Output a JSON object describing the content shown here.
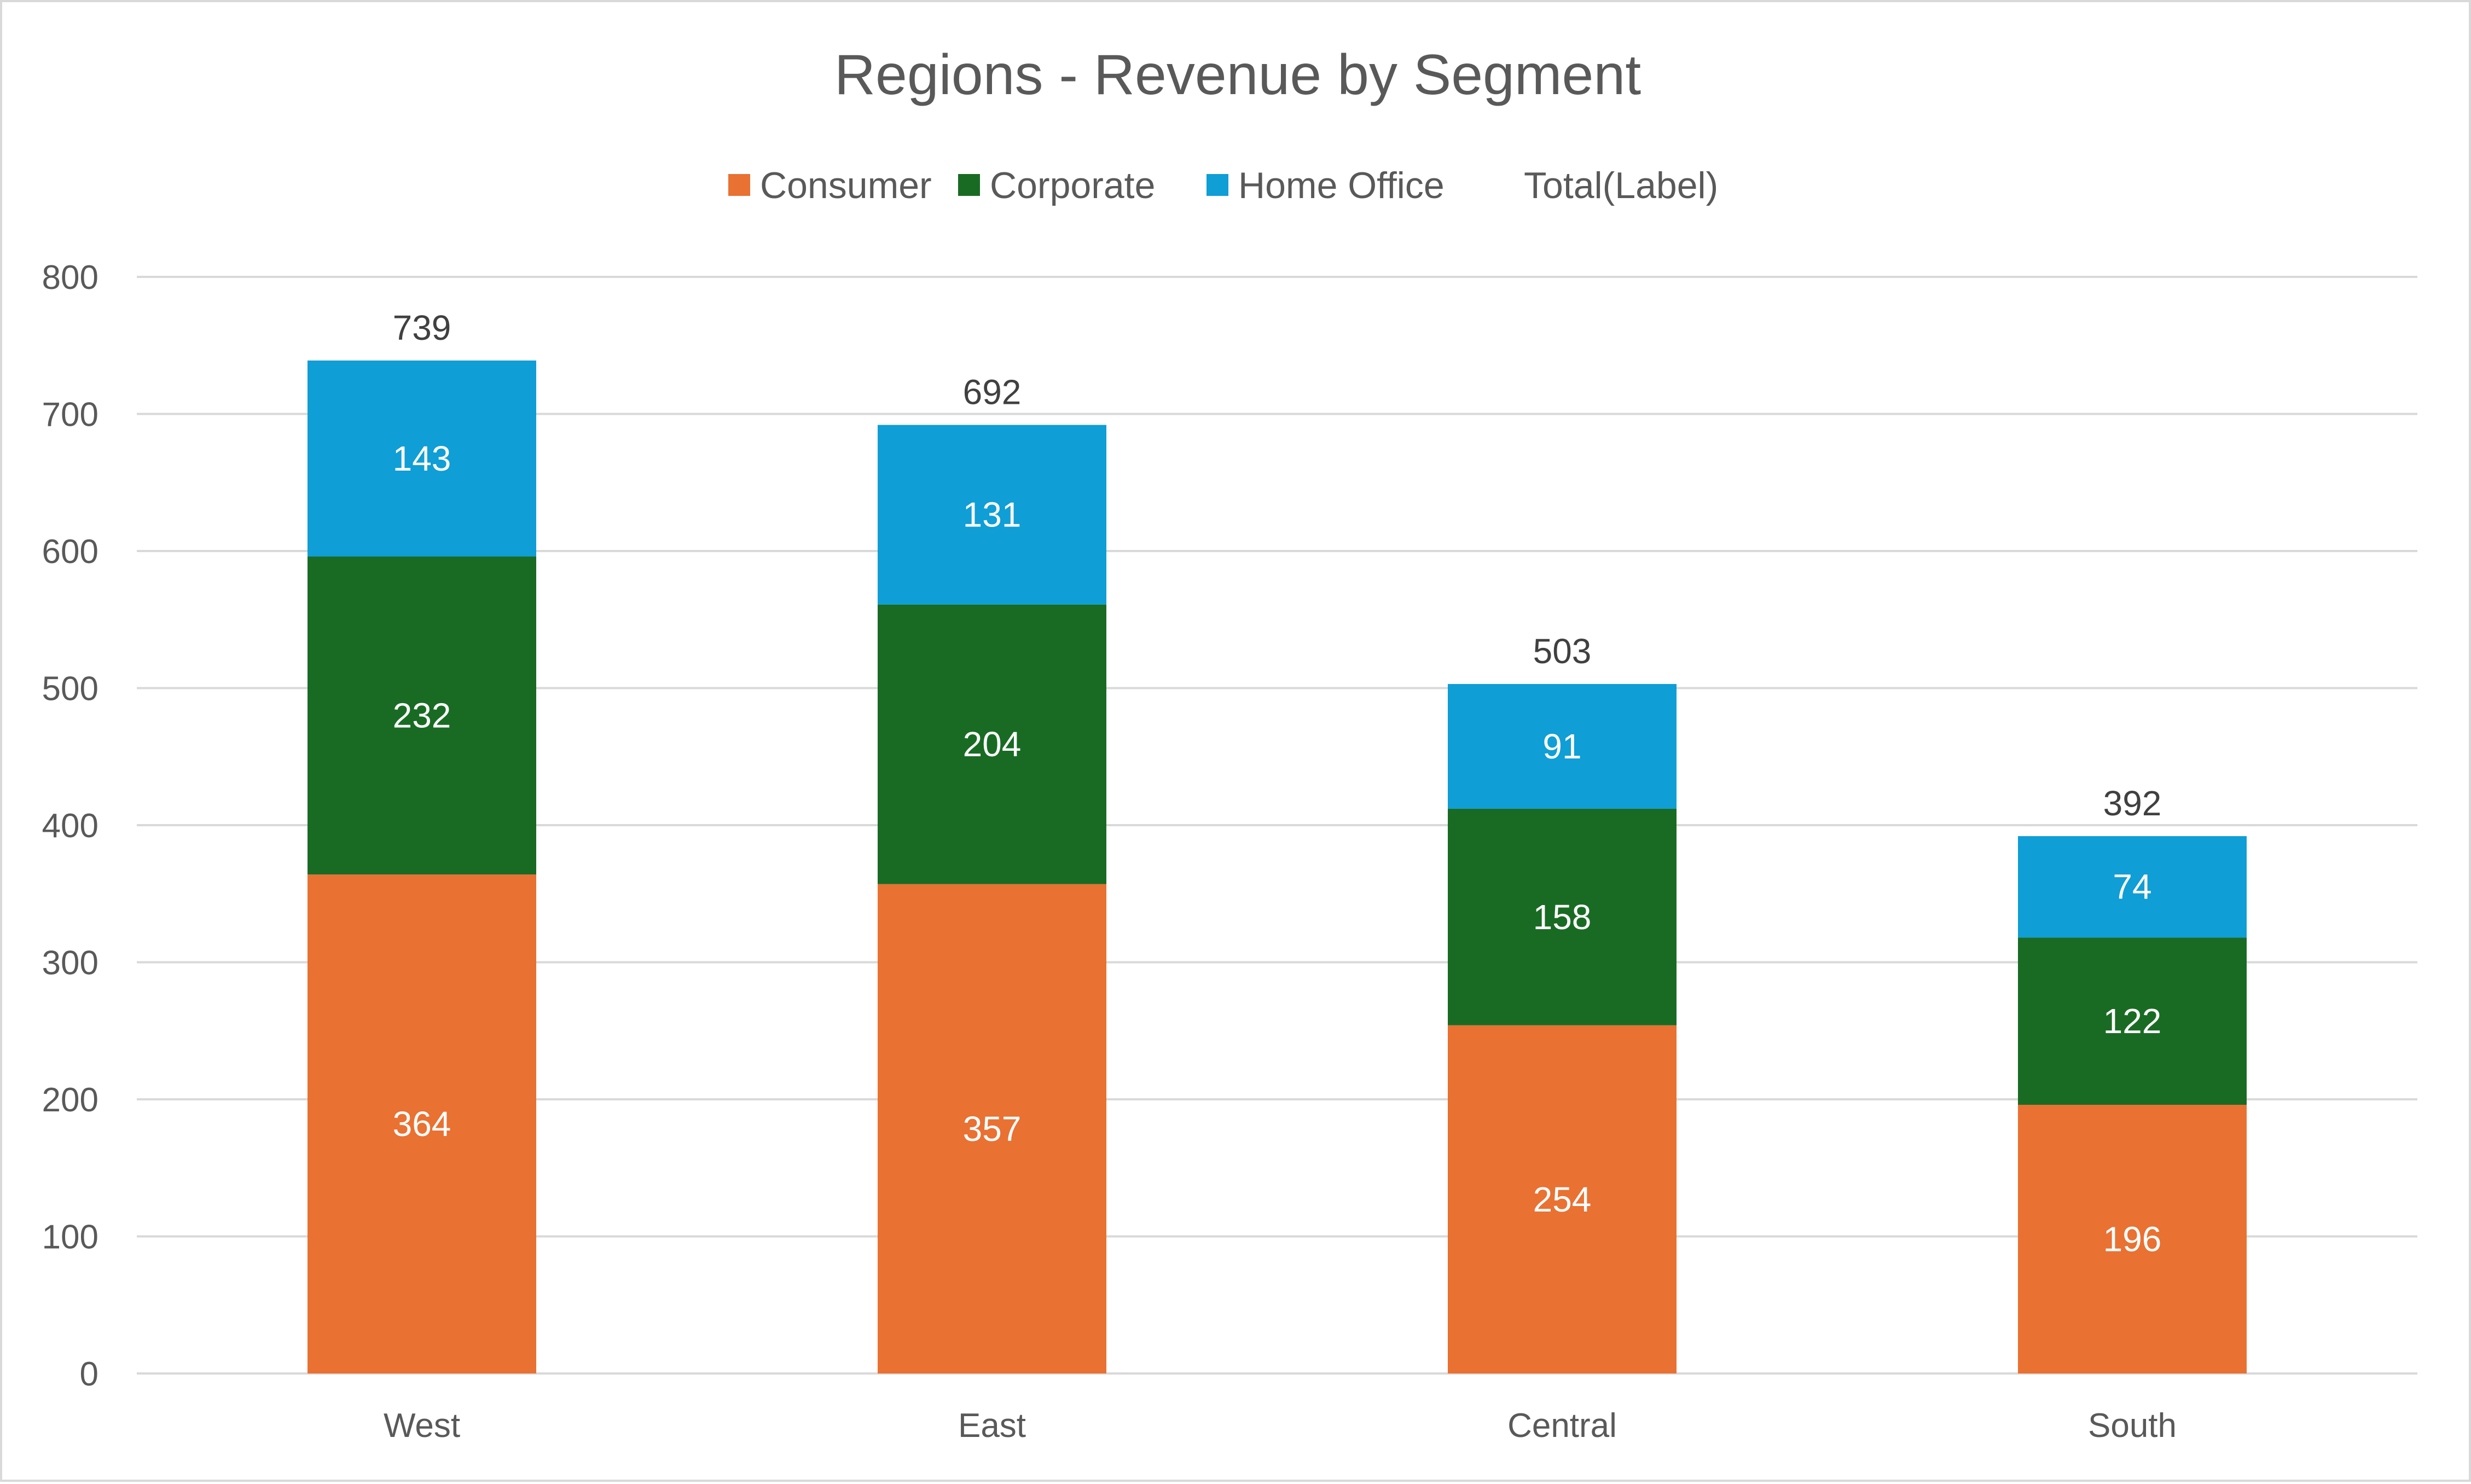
{
  "chart_data": {
    "type": "bar",
    "stacked": true,
    "title": "Regions - Revenue by Segment",
    "categories": [
      "West",
      "East",
      "Central",
      "South"
    ],
    "series": [
      {
        "name": "Consumer",
        "color": "#E97132",
        "values": [
          364,
          357,
          254,
          196
        ]
      },
      {
        "name": "Corporate",
        "color": "#196B24",
        "values": [
          232,
          204,
          158,
          122
        ]
      },
      {
        "name": "Home Office",
        "color": "#0F9ED5",
        "values": [
          143,
          131,
          91,
          74
        ]
      }
    ],
    "totals": {
      "name": "Total(Label)",
      "values": [
        739,
        692,
        503,
        392
      ]
    },
    "ylim": [
      0,
      800
    ],
    "yticks": [
      0,
      100,
      200,
      300,
      400,
      500,
      600,
      700,
      800
    ],
    "grid": true,
    "legend_position": "top",
    "xlabel": "",
    "ylabel": ""
  }
}
